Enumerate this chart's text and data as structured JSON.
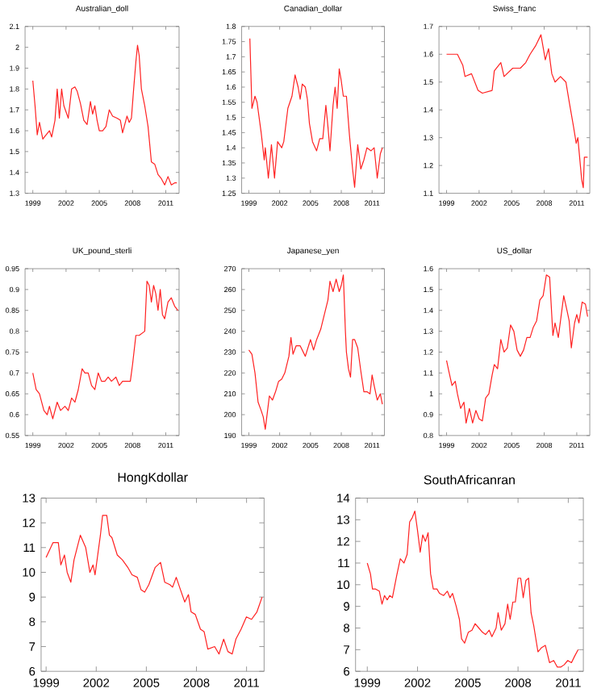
{
  "chart_data": [
    {
      "type": "line",
      "title": "Australian_doll",
      "color": "#ff2020",
      "xlim": [
        1998.3,
        2012.2
      ],
      "xticks": [
        1999,
        2002,
        2005,
        2008,
        2011
      ],
      "ylim": [
        1.3,
        2.1
      ],
      "yticks": [
        1.3,
        1.4,
        1.5,
        1.6,
        1.7,
        1.8,
        1.9,
        2,
        2.1
      ],
      "x": [
        1999,
        1999.2,
        1999.4,
        1999.6,
        1999.9,
        2000.2,
        2000.5,
        2000.7,
        2001.0,
        2001.2,
        2001.4,
        2001.6,
        2001.8,
        2002.2,
        2002.5,
        2002.8,
        2003.0,
        2003.3,
        2003.6,
        2003.9,
        2004.2,
        2004.4,
        2004.6,
        2004.8,
        2005.0,
        2005.3,
        2005.6,
        2005.9,
        2006.2,
        2006.6,
        2006.9,
        2007.1,
        2007.3,
        2007.5,
        2007.7,
        2007.9,
        2008.1,
        2008.3,
        2008.45,
        2008.6,
        2008.8,
        2009.1,
        2009.4,
        2009.7,
        2010.0,
        2010.3,
        2010.6,
        2010.9,
        2011.2,
        2011.5,
        2011.8,
        2012.0
      ],
      "values": [
        1.84,
        1.72,
        1.58,
        1.64,
        1.56,
        1.58,
        1.6,
        1.57,
        1.65,
        1.8,
        1.66,
        1.8,
        1.72,
        1.66,
        1.8,
        1.81,
        1.79,
        1.73,
        1.65,
        1.63,
        1.74,
        1.68,
        1.72,
        1.65,
        1.6,
        1.6,
        1.62,
        1.7,
        1.67,
        1.66,
        1.65,
        1.59,
        1.63,
        1.67,
        1.64,
        1.66,
        1.8,
        1.93,
        2.01,
        1.96,
        1.8,
        1.72,
        1.62,
        1.45,
        1.44,
        1.39,
        1.37,
        1.34,
        1.38,
        1.34,
        1.35,
        1.35
      ]
    },
    {
      "type": "line",
      "title": "Canadian_dollar",
      "color": "#ff2020",
      "xlim": [
        1998.3,
        2012.2
      ],
      "xticks": [
        1999,
        2002,
        2005,
        2008,
        2011
      ],
      "ylim": [
        1.25,
        1.8
      ],
      "yticks": [
        1.25,
        1.3,
        1.35,
        1.4,
        1.45,
        1.5,
        1.55,
        1.6,
        1.65,
        1.7,
        1.75,
        1.8
      ],
      "x": [
        1999.1,
        1999.3,
        1999.6,
        1999.8,
        2000.2,
        2000.5,
        2000.6,
        2000.9,
        2001.2,
        2001.5,
        2001.8,
        2002.2,
        2002.4,
        2002.8,
        2003.2,
        2003.5,
        2003.8,
        2004.0,
        2004.2,
        2004.5,
        2004.7,
        2004.9,
        2005.2,
        2005.6,
        2005.9,
        2006.2,
        2006.5,
        2006.7,
        2006.9,
        2007.2,
        2007.4,
        2007.6,
        2007.8,
        2008.0,
        2008.2,
        2008.5,
        2008.8,
        2009.1,
        2009.3,
        2009.6,
        2009.9,
        2010.2,
        2010.5,
        2010.9,
        2011.2,
        2011.5,
        2011.8,
        2012.0
      ],
      "values": [
        1.76,
        1.53,
        1.57,
        1.55,
        1.45,
        1.36,
        1.4,
        1.3,
        1.41,
        1.3,
        1.42,
        1.4,
        1.42,
        1.53,
        1.57,
        1.64,
        1.6,
        1.56,
        1.61,
        1.6,
        1.56,
        1.48,
        1.42,
        1.39,
        1.43,
        1.43,
        1.54,
        1.47,
        1.39,
        1.54,
        1.6,
        1.53,
        1.66,
        1.62,
        1.57,
        1.57,
        1.44,
        1.33,
        1.27,
        1.41,
        1.33,
        1.36,
        1.4,
        1.39,
        1.4,
        1.3,
        1.38,
        1.4
      ]
    },
    {
      "type": "line",
      "title": "Swiss_franc",
      "color": "#ff2020",
      "xlim": [
        1998.3,
        2012.2
      ],
      "xticks": [
        1999,
        2002,
        2005,
        2008,
        2011
      ],
      "ylim": [
        1.1,
        1.7
      ],
      "yticks": [
        1.1,
        1.2,
        1.3,
        1.4,
        1.5,
        1.6,
        1.7
      ],
      "x": [
        1999.0,
        1999.5,
        2000.0,
        2000.5,
        2000.7,
        2001.3,
        2001.9,
        2002.3,
        2003.2,
        2003.4,
        2004.0,
        2004.3,
        2005.1,
        2005.8,
        2006.3,
        2006.7,
        2007.2,
        2007.7,
        2008.1,
        2008.4,
        2008.7,
        2009.0,
        2009.5,
        2010.0,
        2010.3,
        2010.7,
        2010.95,
        2011.1,
        2011.45,
        2011.6,
        2011.7,
        2012.0
      ],
      "values": [
        1.6,
        1.6,
        1.6,
        1.56,
        1.52,
        1.53,
        1.47,
        1.46,
        1.47,
        1.54,
        1.57,
        1.52,
        1.55,
        1.55,
        1.57,
        1.6,
        1.63,
        1.67,
        1.58,
        1.62,
        1.53,
        1.5,
        1.52,
        1.5,
        1.43,
        1.34,
        1.28,
        1.3,
        1.15,
        1.12,
        1.23,
        1.23
      ]
    },
    {
      "type": "line",
      "title": "UK_pound_sterli",
      "color": "#ff2020",
      "xlim": [
        1998.3,
        2012.2
      ],
      "xticks": [
        1999,
        2002,
        2005,
        2008,
        2011
      ],
      "ylim": [
        0.55,
        0.95
      ],
      "yticks": [
        0.55,
        0.6,
        0.65,
        0.7,
        0.75,
        0.8,
        0.85,
        0.9,
        0.95
      ],
      "x": [
        1999.0,
        1999.3,
        1999.6,
        2000.0,
        2000.3,
        2000.5,
        2000.8,
        2001.2,
        2001.5,
        2001.9,
        2002.2,
        2002.5,
        2002.8,
        2003.1,
        2003.45,
        2003.7,
        2004.0,
        2004.3,
        2004.6,
        2004.9,
        2005.2,
        2005.5,
        2005.8,
        2006.1,
        2006.5,
        2006.8,
        2007.1,
        2007.4,
        2007.8,
        2008.0,
        2008.3,
        2008.6,
        2009.1,
        2009.3,
        2009.5,
        2009.7,
        2009.9,
        2010.1,
        2010.3,
        2010.5,
        2010.7,
        2010.9,
        2011.2,
        2011.5,
        2011.8,
        2012.1
      ],
      "values": [
        0.7,
        0.66,
        0.65,
        0.61,
        0.6,
        0.62,
        0.59,
        0.63,
        0.61,
        0.62,
        0.61,
        0.64,
        0.63,
        0.66,
        0.71,
        0.7,
        0.7,
        0.67,
        0.66,
        0.7,
        0.68,
        0.68,
        0.69,
        0.68,
        0.69,
        0.67,
        0.68,
        0.68,
        0.68,
        0.72,
        0.79,
        0.79,
        0.8,
        0.92,
        0.91,
        0.87,
        0.91,
        0.89,
        0.85,
        0.9,
        0.84,
        0.83,
        0.87,
        0.88,
        0.86,
        0.85
      ]
    },
    {
      "type": "line",
      "title": "Japanese_yen",
      "color": "#ff2020",
      "xlim": [
        1998.3,
        2012.2
      ],
      "xticks": [
        1999,
        2002,
        2005,
        2008,
        2011
      ],
      "ylim": [
        190,
        270
      ],
      "yticks": [
        190,
        200,
        210,
        220,
        230,
        240,
        250,
        260,
        270
      ],
      "x": [
        1999.0,
        1999.3,
        1999.6,
        1999.9,
        2000.2,
        2000.4,
        2000.6,
        2000.8,
        2001.0,
        2001.3,
        2001.6,
        2001.9,
        2002.2,
        2002.5,
        2002.9,
        2003.1,
        2003.3,
        2003.6,
        2004.0,
        2004.5,
        2005.0,
        2005.3,
        2005.6,
        2006.0,
        2006.4,
        2006.7,
        2006.9,
        2007.2,
        2007.5,
        2007.8,
        2008.0,
        2008.2,
        2008.4,
        2008.5,
        2008.7,
        2008.9,
        2009.1,
        2009.3,
        2009.6,
        2009.9,
        2010.2,
        2010.5,
        2010.8,
        2011.0,
        2011.2,
        2011.5,
        2011.8,
        2012.0
      ],
      "values": [
        231,
        229,
        220,
        206,
        202,
        199,
        193,
        201,
        209,
        207,
        211,
        216,
        217,
        220,
        228,
        237,
        229,
        233,
        233,
        228,
        236,
        231,
        236,
        241,
        249,
        255,
        264,
        259,
        265,
        259,
        262,
        267,
        240,
        230,
        222,
        218,
        236,
        236,
        232,
        221,
        211,
        211,
        210,
        219,
        214,
        207,
        210,
        205
      ]
    },
    {
      "type": "line",
      "title": "US_dollar",
      "color": "#ff2020",
      "xlim": [
        1998.3,
        2012.2
      ],
      "xticks": [
        1999,
        2002,
        2005,
        2008,
        2011
      ],
      "ylim": [
        0.8,
        1.6
      ],
      "yticks": [
        0.8,
        0.9,
        1,
        1.1,
        1.2,
        1.3,
        1.4,
        1.5,
        1.6
      ],
      "x": [
        1999.0,
        1999.2,
        1999.5,
        1999.8,
        2000.0,
        2000.3,
        2000.6,
        2000.8,
        2001.1,
        2001.4,
        2001.7,
        2002.0,
        2002.3,
        2002.6,
        2002.9,
        2003.2,
        2003.4,
        2003.7,
        2004.0,
        2004.3,
        2004.6,
        2004.9,
        2005.2,
        2005.5,
        2005.8,
        2006.1,
        2006.4,
        2006.7,
        2007.0,
        2007.3,
        2007.6,
        2007.9,
        2008.2,
        2008.5,
        2008.8,
        2009.0,
        2009.3,
        2009.5,
        2009.8,
        2010.1,
        2010.3,
        2010.5,
        2010.8,
        2011.0,
        2011.2,
        2011.5,
        2011.8,
        2012.0
      ],
      "values": [
        1.16,
        1.11,
        1.04,
        1.06,
        1.0,
        0.93,
        0.96,
        0.86,
        0.93,
        0.86,
        0.92,
        0.88,
        0.87,
        0.98,
        1.0,
        1.09,
        1.14,
        1.12,
        1.26,
        1.2,
        1.22,
        1.33,
        1.3,
        1.21,
        1.18,
        1.21,
        1.27,
        1.27,
        1.32,
        1.35,
        1.45,
        1.47,
        1.57,
        1.56,
        1.28,
        1.34,
        1.27,
        1.35,
        1.47,
        1.4,
        1.35,
        1.22,
        1.34,
        1.38,
        1.34,
        1.44,
        1.43,
        1.37
      ]
    },
    {
      "type": "line",
      "title": "HongKdollar",
      "color": "#ff2020",
      "xlim": [
        1998.7,
        2012.05
      ],
      "xticks": [
        1999,
        2002,
        2005,
        2008,
        2011
      ],
      "ylim": [
        6,
        13
      ],
      "yticks": [
        6,
        7,
        8,
        9,
        10,
        11,
        12,
        13
      ],
      "x": [
        1999.0,
        1999.41,
        1999.73,
        1999.88,
        2000.1,
        2000.26,
        2000.48,
        2000.67,
        2001.05,
        2001.37,
        2001.62,
        2001.81,
        2001.93,
        2002.25,
        2002.38,
        2002.63,
        2002.79,
        2002.94,
        2003.26,
        2003.57,
        2003.89,
        2004.14,
        2004.46,
        2004.68,
        2004.9,
        2005.15,
        2005.53,
        2005.85,
        2006.1,
        2006.41,
        2006.57,
        2006.79,
        2007.04,
        2007.3,
        2007.52,
        2007.68,
        2007.93,
        2008.24,
        2008.46,
        2008.68,
        2009.09,
        2009.35,
        2009.63,
        2009.88,
        2010.14,
        2010.36,
        2010.67,
        2010.99,
        2011.3,
        2011.62,
        2011.93
      ],
      "values": [
        10.6,
        11.2,
        11.2,
        10.3,
        10.7,
        10.0,
        9.6,
        10.5,
        11.5,
        11.0,
        10.0,
        10.3,
        9.9,
        11.5,
        12.3,
        12.3,
        11.5,
        11.4,
        10.7,
        10.5,
        10.2,
        9.9,
        9.8,
        9.3,
        9.2,
        9.5,
        10.2,
        10.4,
        9.6,
        9.5,
        9.4,
        9.8,
        9.3,
        8.8,
        9.1,
        8.4,
        8.3,
        7.7,
        7.6,
        6.9,
        7.0,
        6.7,
        7.3,
        6.8,
        6.7,
        7.3,
        7.7,
        8.2,
        8.1,
        8.4,
        9.0
      ]
    },
    {
      "type": "line",
      "title": "SouthAfricanran",
      "color": "#ff2020",
      "xlim": [
        1998.3,
        2011.9
      ],
      "xticks": [
        1999,
        2002,
        2005,
        2008,
        2011
      ],
      "ylim": [
        6,
        14
      ],
      "yticks": [
        6,
        7,
        8,
        9,
        10,
        11,
        12,
        13,
        14
      ],
      "x": [
        1999.0,
        1999.19,
        1999.31,
        1999.5,
        1999.72,
        1999.88,
        2000.03,
        2000.19,
        2000.34,
        2000.5,
        2000.75,
        2000.97,
        2001.19,
        2001.38,
        2001.53,
        2001.69,
        2001.84,
        2002.0,
        2002.16,
        2002.31,
        2002.47,
        2002.63,
        2002.78,
        2002.94,
        2003.16,
        2003.31,
        2003.56,
        2003.78,
        2003.94,
        2004.09,
        2004.31,
        2004.5,
        2004.63,
        2004.81,
        2005.03,
        2005.25,
        2005.44,
        2005.66,
        2005.88,
        2006.06,
        2006.28,
        2006.44,
        2006.69,
        2006.81,
        2007.0,
        2007.22,
        2007.38,
        2007.53,
        2007.69,
        2007.84,
        2008.0,
        2008.16,
        2008.31,
        2008.47,
        2008.63,
        2008.78,
        2008.94,
        2009.19,
        2009.41,
        2009.63,
        2009.88,
        2010.13,
        2010.34,
        2010.56,
        2010.75,
        2010.97,
        2011.19,
        2011.38,
        2011.59
      ],
      "values": [
        11.0,
        10.5,
        9.8,
        9.8,
        9.7,
        9.1,
        9.5,
        9.3,
        9.5,
        9.4,
        10.4,
        11.2,
        11.0,
        11.4,
        12.9,
        13.1,
        13.4,
        12.5,
        11.5,
        12.3,
        12.0,
        12.4,
        10.5,
        9.8,
        9.8,
        9.6,
        9.5,
        9.7,
        9.4,
        9.6,
        9.0,
        8.4,
        7.5,
        7.3,
        7.8,
        7.9,
        8.2,
        8.0,
        7.8,
        7.7,
        7.9,
        7.6,
        8.0,
        8.7,
        7.9,
        8.2,
        9.1,
        8.4,
        9.2,
        9.2,
        10.3,
        10.3,
        9.4,
        10.2,
        10.3,
        8.7,
        8.1,
        6.9,
        7.1,
        7.2,
        6.4,
        6.5,
        6.2,
        6.2,
        6.3,
        6.5,
        6.4,
        6.7,
        7.0
      ]
    }
  ]
}
